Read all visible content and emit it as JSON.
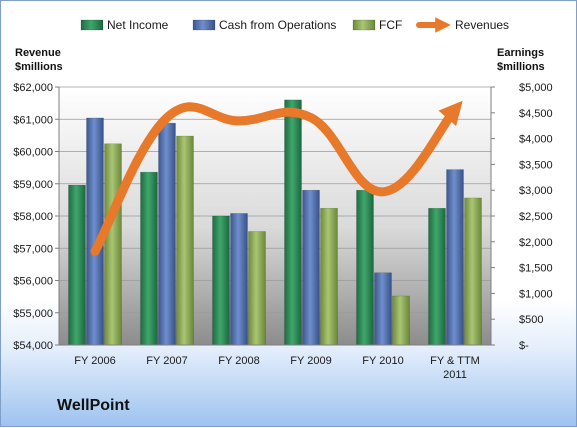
{
  "company": "WellPoint",
  "chart_data": {
    "type": "bar",
    "categories": [
      "FY 2006",
      "FY 2007",
      "FY 2008",
      "FY 2009",
      "FY 2010",
      "FY & TTM 2011"
    ],
    "category_lines": [
      [
        "FY 2006"
      ],
      [
        "FY 2007"
      ],
      [
        "FY 2008"
      ],
      [
        "FY 2009"
      ],
      [
        "FY 2010"
      ],
      [
        "FY & TTM",
        "2011"
      ]
    ],
    "series": [
      {
        "name": "Net Income",
        "axis": "right",
        "color": "#2e8b57",
        "values": [
          3100,
          3350,
          2500,
          4750,
          3000,
          2650
        ]
      },
      {
        "name": "Cash from Operations",
        "axis": "right",
        "color": "#4f6faf",
        "values": [
          4400,
          4300,
          2550,
          3000,
          1400,
          3400
        ]
      },
      {
        "name": "FCF",
        "axis": "right",
        "color": "#8fae5a",
        "values": [
          3900,
          4050,
          2200,
          2650,
          950,
          2850
        ]
      }
    ],
    "line_series": {
      "name": "Revenues",
      "axis": "left",
      "color": "#e8782a",
      "values": [
        56900,
        61050,
        60950,
        61050,
        58750,
        61300
      ]
    },
    "left_axis": {
      "title_lines": [
        "Revenue",
        "$millions"
      ],
      "min": 54000,
      "max": 62000,
      "step": 1000,
      "tick_labels": [
        "$54,000",
        "$55,000",
        "$56,000",
        "$57,000",
        "$58,000",
        "$59,000",
        "$60,000",
        "$61,000",
        "$62,000"
      ]
    },
    "right_axis": {
      "title_lines": [
        "Earnings",
        "$millions"
      ],
      "min": 0,
      "max": 5000,
      "step": 500,
      "tick_labels": [
        "$-",
        "$500",
        "$1,000",
        "$1,500",
        "$2,000",
        "$2,500",
        "$3,000",
        "$3,500",
        "$4,000",
        "$4,500",
        "$5,000"
      ]
    },
    "legend": {
      "placement": "top",
      "entries": [
        "Net Income",
        "Cash from Operations",
        "FCF",
        "Revenues"
      ]
    },
    "grid": true
  }
}
